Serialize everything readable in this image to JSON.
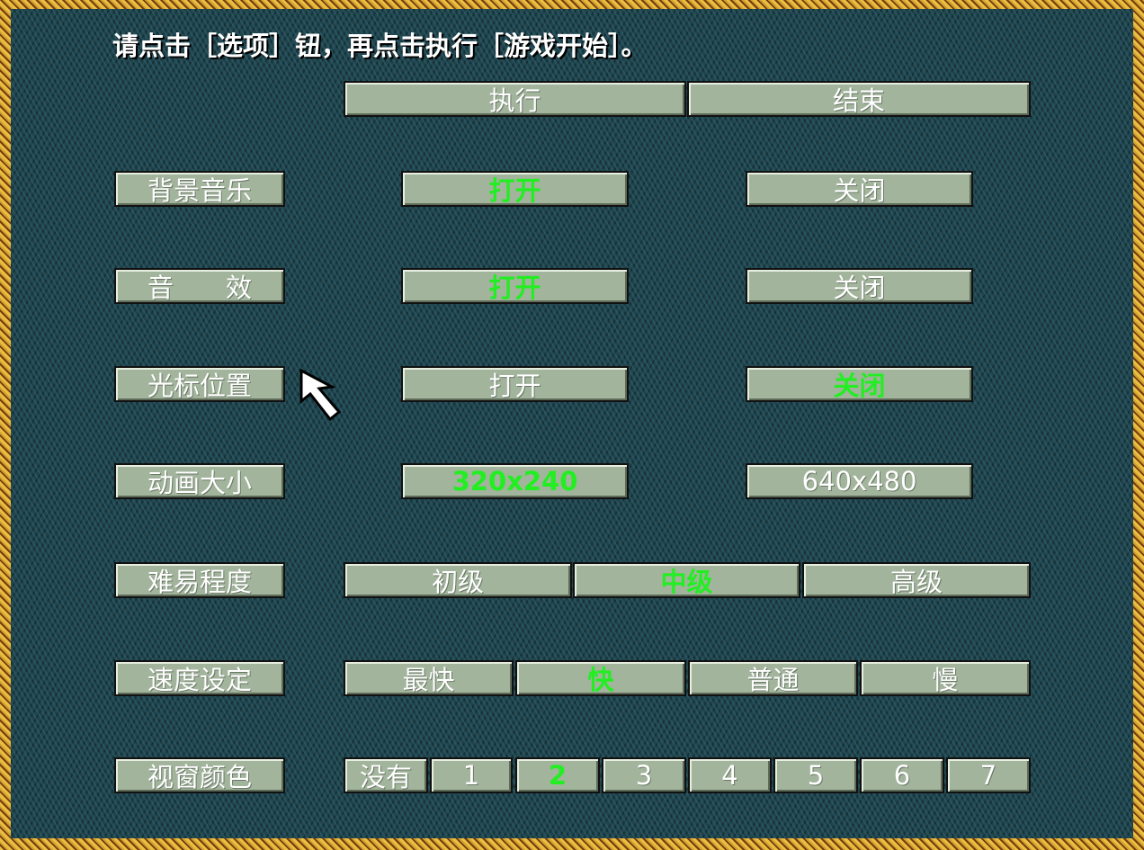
{
  "instruction": "请点击［选项］钮，再点击执行［游戏开始］。",
  "top_buttons": [
    {
      "label": "执行"
    },
    {
      "label": "结束"
    }
  ],
  "rows": [
    {
      "label": "背景音乐",
      "options": [
        {
          "label": "打开",
          "selected": true
        },
        {
          "label": "关闭",
          "selected": false
        }
      ]
    },
    {
      "label": "音　　效",
      "options": [
        {
          "label": "打开",
          "selected": true
        },
        {
          "label": "关闭",
          "selected": false
        }
      ]
    },
    {
      "label": "光标位置",
      "options": [
        {
          "label": "打开",
          "selected": false
        },
        {
          "label": "关闭",
          "selected": true
        }
      ]
    },
    {
      "label": "动画大小",
      "options": [
        {
          "label": "320x240",
          "selected": true
        },
        {
          "label": "640x480",
          "selected": false
        }
      ]
    },
    {
      "label": "难易程度",
      "options": [
        {
          "label": "初级",
          "selected": false
        },
        {
          "label": "中级",
          "selected": true
        },
        {
          "label": "高级",
          "selected": false
        }
      ]
    },
    {
      "label": "速度设定",
      "options": [
        {
          "label": "最快",
          "selected": false
        },
        {
          "label": "快",
          "selected": true
        },
        {
          "label": "普通",
          "selected": false
        },
        {
          "label": "慢",
          "selected": false
        }
      ]
    },
    {
      "label": "视窗颜色",
      "options": [
        {
          "label": "没有",
          "selected": false
        },
        {
          "label": "1",
          "selected": false
        },
        {
          "label": "2",
          "selected": true
        },
        {
          "label": "3",
          "selected": false
        },
        {
          "label": "4",
          "selected": false
        },
        {
          "label": "5",
          "selected": false
        },
        {
          "label": "6",
          "selected": false
        },
        {
          "label": "7",
          "selected": false
        }
      ]
    }
  ],
  "colors": {
    "selected": "#22ee22",
    "button": "#a2b49c",
    "background": "#23434a",
    "border": "#e8c040"
  },
  "cursor_icon": "arrow-pointer-icon"
}
